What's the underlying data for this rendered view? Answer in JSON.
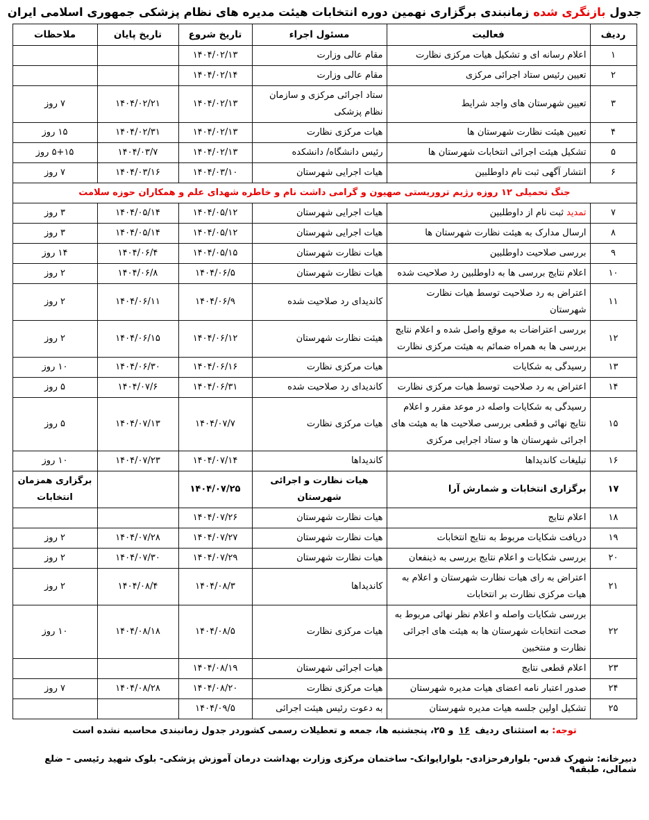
{
  "colors": {
    "red": "#e80000",
    "border": "#111111"
  },
  "title": {
    "prefix": "جدول",
    "highlight": "بازنگری شده",
    "rest": "زمانبندی برگزاری نهمین دوره انتخابات هیئت مدیره های  نظام پزشکی جمهوری اسلامی ایران"
  },
  "table": {
    "columns": [
      "ردیف",
      "فعالیت",
      "مسئول اجراء",
      "تاریخ شروع",
      "تاریخ پایان",
      "ملاحظات"
    ],
    "banner": {
      "after_row": "۶",
      "text": "جنگ تحمیلی ۱۲ روزه رژیم تروریستی صهیون و گرامی داشت نام و خاطره شهدای علم و همکاران حوزه سلامت"
    },
    "rows": [
      {
        "num": "۱",
        "activity": "اعلام رسانه ای و تشکیل هیات مرکزی نظارت",
        "executor": "مقام عالی وزارت",
        "start": "۱۴۰۴/۰۲/۱۳",
        "end": "",
        "notes": ""
      },
      {
        "num": "۲",
        "activity": "تعیین رئیس ستاد اجرائی  مرکزی",
        "executor": "مقام عالی وزارت",
        "start": "۱۴۰۴/۰۲/۱۴",
        "end": "",
        "notes": ""
      },
      {
        "num": "۳",
        "activity": "تعیین شهرستان های واجد شرایط",
        "executor": "ستاد اجرائی مرکزی و سازمان نظام پزشکی",
        "start": "۱۴۰۴/۰۲/۱۳",
        "end": "۱۴۰۴/۰۲/۲۱",
        "notes": "۷ روز"
      },
      {
        "num": "۴",
        "activity": "تعیین هیئت نظارت شهرستان ها",
        "executor": "هیات مرکزی  نظارت",
        "start": "۱۴۰۴/۰۲/۱۳",
        "end": "۱۴۰۴/۰۲/۳۱",
        "notes": "۱۵ روز"
      },
      {
        "num": "۵",
        "activity": "تشکیل هیئت اجرائی انتخابات شهرستان ها",
        "executor": "رئیس دانشگاه/ دانشکده",
        "start": "۱۴۰۴/۰۲/۱۳",
        "end": "۱۴۰۴/۰۳/۷",
        "notes": "۵+۱۵ روز"
      },
      {
        "num": "۶",
        "activity": "انتشار آگهی ثبت نام داوطلبین",
        "executor": "هیات اجرایی شهرستان",
        "start": "۱۴۰۴/۰۳/۱۰",
        "end": "۱۴۰۴/۰۳/۱۶",
        "notes": "۷ روز"
      },
      {
        "num": "۷",
        "red_prefix": "تمدید",
        "activity": "ثبت نام از داوطلبین",
        "executor": "هیات اجرایی شهرستان",
        "start": "۱۴۰۴/۰۵/۱۲",
        "end": "۱۴۰۴/۰۵/۱۴",
        "notes": "۳ روز"
      },
      {
        "num": "۸",
        "activity": "ارسال مدارک به هیئت نظارت شهرستان ها",
        "executor": "هیات اجرایی شهرستان",
        "start": "۱۴۰۴/۰۵/۱۲",
        "end": "۱۴۰۴/۰۵/۱۴",
        "notes": "۳ روز"
      },
      {
        "num": "۹",
        "activity": "بررسی صلاحیت داوطلبین",
        "executor": "هیات نظارت شهرستان",
        "start": "۱۴۰۴/۰۵/۱۵",
        "end": "۱۴۰۴/۰۶/۴",
        "notes": "۱۴ روز"
      },
      {
        "num": "۱۰",
        "activity": "اعلام نتایج بررسی ها به داوطلبین رد صلاحیت شده",
        "executor": "هیات نظارت شهرستان",
        "start": "۱۴۰۴/۰۶/۵",
        "end": "۱۴۰۴/۰۶/۸",
        "notes": "۲ روز"
      },
      {
        "num": "۱۱",
        "activity": "اعتراض به رد صلاحیت توسط هیات نظارت شهرستان",
        "executor": "کاندیدای رد صلاحیت شده",
        "start": "۱۴۰۴/۰۶/۹",
        "end": "۱۴۰۴/۰۶/۱۱",
        "notes": "۲ روز"
      },
      {
        "num": "۱۲",
        "activity": "بررسی اعتراضات به موقع واصل شده و اعلام نتایج بررسی ها به همراه ضمائم به هیئت مرکزی نظارت",
        "executor": "هیئت نظارت شهرستان",
        "start": "۱۴۰۴/۰۶/۱۲",
        "end": "۱۴۰۴/۰۶/۱۵",
        "notes": "۲ روز"
      },
      {
        "num": "۱۳",
        "activity": "رسیدگی به شکایات",
        "executor": "هیات مرکزی  نظارت",
        "start": "۱۴۰۴/۰۶/۱۶",
        "end": "۱۴۰۴/۰۶/۳۰",
        "notes": "۱۰ روز"
      },
      {
        "num": "۱۴",
        "activity": "اعتراض به رد صلاحیت توسط هیات مرکزی نظارت",
        "executor": "کاندیدای رد صلاحیت شده",
        "start": "۱۴۰۴/۰۶/۳۱",
        "end": "۱۴۰۴/۰۷/۶",
        "notes": "۵ روز"
      },
      {
        "num": "۱۵",
        "activity": "رسیدگی به شکایات واصله در موعد مقرر و اعلام نتایج نهائی و قطعی بررسی صلاحیت ها به هیئت های اجرائی شهرستان ها و ستاد اجرایی مرکزی",
        "executor": "هیات مرکزی نظارت",
        "start": "۱۴۰۴/۰۷/۷",
        "end": "۱۴۰۴/۰۷/۱۳",
        "notes": "۵ روز"
      },
      {
        "num": "۱۶",
        "activity": "تبلیغات کاندیداها",
        "executor": "کاندیداها",
        "start": "۱۴۰۴/۰۷/۱۴",
        "end": "۱۴۰۴/۰۷/۲۳",
        "notes": "۱۰ روز"
      },
      {
        "num": "۱۷",
        "bold": true,
        "activity": "برگزاری انتخابات و شمارش آرا",
        "executor": "هیات نظارت و اجرائی شهرستان",
        "start": "۱۴۰۴/۰۷/۲۵",
        "end": "",
        "notes": "برگزاری همزمان انتخابات"
      },
      {
        "num": "۱۸",
        "activity": "اعلام نتایج",
        "executor": "هیات نظارت شهرستان",
        "start": "۱۴۰۴/۰۷/۲۶",
        "end": "",
        "notes": ""
      },
      {
        "num": "۱۹",
        "activity": "دریافت شکایات مربوط به نتایج انتخابات",
        "executor": "هیات نظارت شهرستان",
        "start": "۱۴۰۴/۰۷/۲۷",
        "end": "۱۴۰۴/۰۷/۲۸",
        "notes": "۲ روز"
      },
      {
        "num": "۲۰",
        "activity": "بررسی شکایات و اعلام نتایج بررسی به ذینفعان",
        "executor": "هیات نظارت شهرستان",
        "start": "۱۴۰۴/۰۷/۲۹",
        "end": "۱۴۰۴/۰۷/۳۰",
        "notes": "۲ روز"
      },
      {
        "num": "۲۱",
        "activity": "اعتراض به رای هیات نظارت شهرستان و اعلام به هیات مرکزی نظارت بر انتخابات",
        "executor": "کاندیداها",
        "start": "۱۴۰۴/۰۸/۳",
        "end": "۱۴۰۴/۰۸/۴",
        "notes": "۲ روز"
      },
      {
        "num": "۲۲",
        "activity": "بررسی شکایات واصله و اعلام نظر نهائی مربوط به صحت انتخابات شهرستان ها به هیئت های اجرائی نظارت و منتخبین",
        "executor": "هیات مرکزی نظارت",
        "start": "۱۴۰۴/۰۸/۵",
        "end": "۱۴۰۴/۰۸/۱۸",
        "notes": "۱۰ روز"
      },
      {
        "num": "۲۳",
        "activity": "اعلام قطعی نتایج",
        "executor": "هیات اجرائی شهرستان",
        "start": "۱۴۰۴/۰۸/۱۹",
        "end": "",
        "notes": ""
      },
      {
        "num": "۲۴",
        "activity": "صدور اعتبار نامه اعضای هیات مدیره شهرستان",
        "executor": "هیات مرکزی نظارت",
        "start": "۱۴۰۴/۰۸/۲۰",
        "end": "۱۴۰۴/۰۸/۲۸",
        "notes": "۷ روز"
      },
      {
        "num": "۲۵",
        "activity": "تشکیل اولین جلسه هیات مدیره شهرستان",
        "executor": "به دعوت رئیس هیئت اجرائی",
        "start": "۱۴۰۴/۰۹/۵",
        "end": "",
        "notes": ""
      }
    ]
  },
  "note": {
    "label": "توجه:",
    "before": "به استثنای ردیف",
    "underline": "۱۶",
    "after": "و ۲۵، پنجشنبه ها، جمعه و تعطیلات رسمی کشوردر جدول زمانبندی محاسبه نشده است"
  },
  "address": "دبیرخانه: شهرک قدس- بلوارفرحزادی- بلوارایوانک- ساختمان مرکزی وزارت بهداشت درمان آموزش پزشکی- بلوک شهید رئیسی – ضلع شمالی، طبقه۹"
}
